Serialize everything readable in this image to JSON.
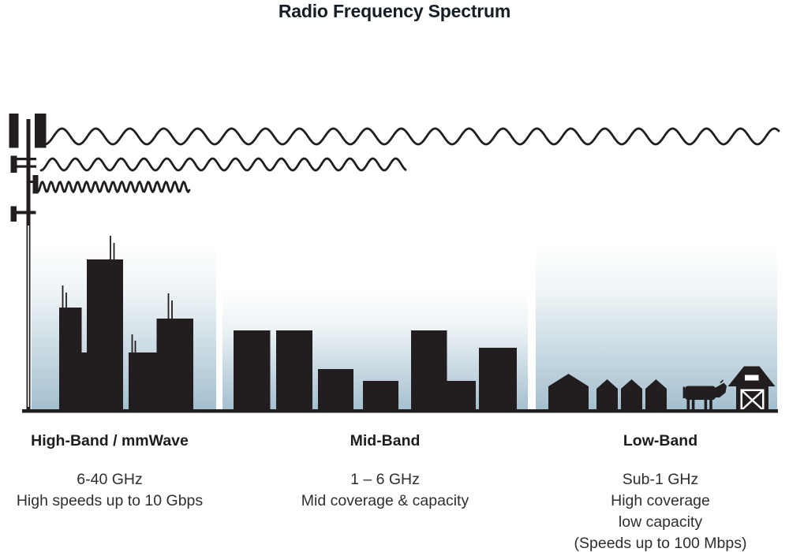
{
  "title": "Radio Frequency Spectrum",
  "bands": [
    {
      "name": "High-Band / mmWave",
      "frequency": "6-40 GHz",
      "lines": [
        "High speeds up to 10 Gbps"
      ],
      "scene": "city-skyscrapers"
    },
    {
      "name": "Mid-Band",
      "frequency": "1 – 6 GHz",
      "lines": [
        "Mid coverage & capacity"
      ],
      "scene": "midrise-buildings"
    },
    {
      "name": "Low-Band",
      "frequency": "Sub-1 GHz",
      "lines": [
        "High coverage",
        "low capacity",
        "(Speeds up to 100 Mbps)"
      ],
      "scene": "houses-cow-barn"
    }
  ],
  "icons": {
    "tower": "cell-tower-icon",
    "wave_long": "long-wavelength-wave-icon",
    "wave_medium": "medium-wavelength-wave-icon",
    "wave_short": "short-wavelength-wave-icon",
    "city": "skyscraper-skyline-icon",
    "midrise": "midrise-skyline-icon",
    "houses": "houses-icon",
    "cow": "cow-icon",
    "barn": "barn-icon"
  },
  "colors": {
    "silhouette": "#221e1f",
    "title": "#161d26",
    "text": "#2e2e2e",
    "sky_top": "#ffffff",
    "sky_mid": "#eef4f6",
    "sky_bottom": "#a3bfcf"
  }
}
